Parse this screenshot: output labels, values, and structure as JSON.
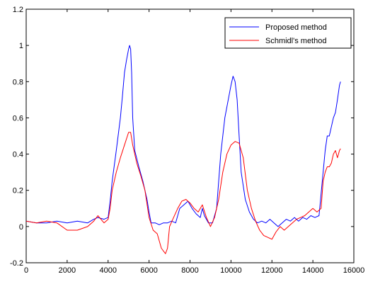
{
  "chart_data": {
    "type": "line",
    "title": "",
    "xlabel": "",
    "ylabel": "",
    "xlim": [
      0,
      16000
    ],
    "ylim": [
      -0.2,
      1.2
    ],
    "xticks": [
      0,
      2000,
      4000,
      6000,
      8000,
      10000,
      12000,
      14000,
      16000
    ],
    "xtick_labels": [
      "0",
      "2000",
      "4000",
      "6000",
      "8000",
      "10000",
      "12000",
      "14000",
      "16000"
    ],
    "yticks": [
      -0.2,
      0,
      0.2,
      0.4,
      0.6,
      0.8,
      1,
      1.2
    ],
    "ytick_labels": [
      "-0.2",
      "0",
      "0.2",
      "0.4",
      "0.6",
      "0.8",
      "1",
      "1.2"
    ],
    "grid": false,
    "legend_position": "top-right",
    "series": [
      {
        "name": "Proposed method",
        "color": "#0000ff",
        "x": [
          0,
          500,
          1000,
          1500,
          2000,
          2500,
          3000,
          3300,
          3500,
          3800,
          4000,
          4100,
          4200,
          4400,
          4600,
          4700,
          4800,
          4900,
          5000,
          5050,
          5100,
          5150,
          5200,
          5300,
          5500,
          5700,
          5900,
          6000,
          6100,
          6300,
          6500,
          6700,
          6900,
          7100,
          7300,
          7500,
          7700,
          7900,
          8100,
          8300,
          8500,
          8600,
          8700,
          8900,
          9100,
          9300,
          9500,
          9700,
          9900,
          10000,
          10100,
          10200,
          10300,
          10400,
          10500,
          10700,
          10900,
          11100,
          11300,
          11500,
          11700,
          11900,
          12100,
          12300,
          12500,
          12700,
          12900,
          13100,
          13300,
          13500,
          13700,
          13900,
          14100,
          14300,
          14500,
          14600,
          14700,
          14800,
          14900,
          15000,
          15100,
          15200,
          15300,
          15350
        ],
        "y": [
          0.03,
          0.02,
          0.02,
          0.03,
          0.02,
          0.03,
          0.02,
          0.04,
          0.05,
          0.04,
          0.05,
          0.14,
          0.25,
          0.42,
          0.6,
          0.72,
          0.85,
          0.92,
          0.98,
          1.0,
          0.98,
          0.85,
          0.6,
          0.42,
          0.33,
          0.25,
          0.15,
          0.08,
          0.02,
          0.02,
          0.01,
          0.02,
          0.02,
          0.03,
          0.02,
          0.1,
          0.12,
          0.14,
          0.1,
          0.07,
          0.05,
          0.1,
          0.06,
          0.02,
          0.02,
          0.1,
          0.4,
          0.6,
          0.72,
          0.78,
          0.83,
          0.8,
          0.7,
          0.5,
          0.3,
          0.15,
          0.08,
          0.04,
          0.02,
          0.03,
          0.02,
          0.04,
          0.02,
          0.0,
          0.02,
          0.04,
          0.03,
          0.05,
          0.03,
          0.05,
          0.04,
          0.06,
          0.05,
          0.06,
          0.3,
          0.42,
          0.5,
          0.5,
          0.55,
          0.6,
          0.63,
          0.7,
          0.78,
          0.8
        ]
      },
      {
        "name": "Schmidl's method",
        "color": "#ff0000",
        "x": [
          0,
          500,
          1000,
          1500,
          2000,
          2500,
          3000,
          3300,
          3500,
          3800,
          4000,
          4100,
          4200,
          4400,
          4600,
          4800,
          5000,
          5100,
          5200,
          5400,
          5600,
          5800,
          6000,
          6200,
          6400,
          6600,
          6800,
          6900,
          7000,
          7200,
          7400,
          7600,
          7800,
          8000,
          8200,
          8400,
          8600,
          8800,
          9000,
          9200,
          9400,
          9600,
          9800,
          10000,
          10200,
          10400,
          10600,
          10800,
          11000,
          11200,
          11400,
          11600,
          11800,
          12000,
          12200,
          12400,
          12600,
          12800,
          13000,
          13200,
          13400,
          13600,
          13800,
          14000,
          14200,
          14400,
          14500,
          14600,
          14700,
          14800,
          14900,
          15000,
          15100,
          15200,
          15300,
          15350
        ],
        "y": [
          0.03,
          0.02,
          0.03,
          0.02,
          -0.02,
          -0.02,
          0.0,
          0.03,
          0.06,
          0.02,
          0.04,
          0.1,
          0.2,
          0.3,
          0.38,
          0.45,
          0.52,
          0.52,
          0.45,
          0.35,
          0.28,
          0.2,
          0.05,
          -0.02,
          -0.04,
          -0.12,
          -0.15,
          -0.12,
          0.0,
          0.05,
          0.1,
          0.14,
          0.15,
          0.13,
          0.1,
          0.08,
          0.12,
          0.05,
          0.0,
          0.05,
          0.15,
          0.3,
          0.4,
          0.45,
          0.47,
          0.46,
          0.38,
          0.2,
          0.1,
          0.03,
          -0.02,
          -0.05,
          -0.06,
          -0.07,
          -0.03,
          0.0,
          -0.02,
          0.0,
          0.02,
          0.04,
          0.05,
          0.06,
          0.08,
          0.1,
          0.08,
          0.1,
          0.25,
          0.3,
          0.33,
          0.33,
          0.35,
          0.4,
          0.42,
          0.38,
          0.42,
          0.43
        ]
      }
    ]
  }
}
